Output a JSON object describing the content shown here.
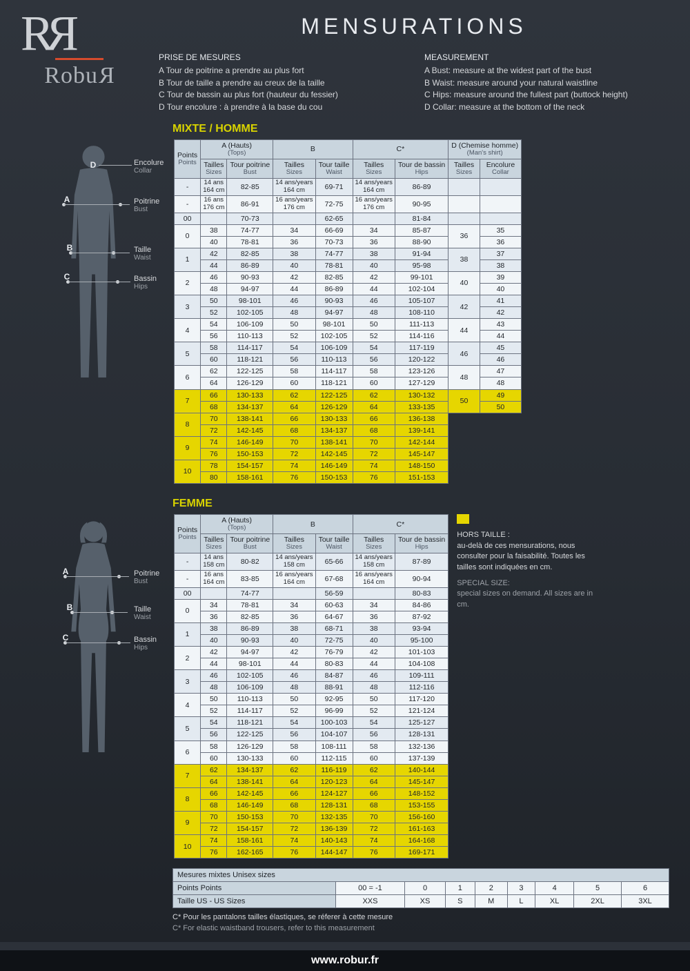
{
  "title": "MENSURATIONS",
  "brand": {
    "word": "RobuR"
  },
  "instructions": {
    "fr": {
      "hd": "PRISE DE MESURES",
      "a": "A Tour de poitrine a prendre au plus fort",
      "b": "B Tour de taille a prendre au creux de la taille",
      "c": "C Tour de bassin au plus fort (hauteur du fessier)",
      "d": "D Tour encolure : à prendre à la base du cou"
    },
    "en": {
      "hd": "MEASUREMENT",
      "a": "A Bust: measure at the widest part of the bust",
      "b": "B Waist: measure around your natural waistline",
      "c": "C Hips: measure around the fullest part (buttock height)",
      "d": "D Collar: measure at the bottom of the neck"
    }
  },
  "sect_homme": "MIXTE /  HOMME",
  "sect_femme": "FEMME",
  "labels": {
    "encolure": {
      "fr": "Encolure",
      "en": "Collar"
    },
    "poitrine": {
      "fr": "Poitrine",
      "en": "Bust"
    },
    "taille": {
      "fr": "Taille",
      "en": "Waist"
    },
    "bassin": {
      "fr": "Bassin",
      "en": "Hips"
    }
  },
  "cols": {
    "groupA": "A (Hauts)",
    "groupA_sub": "(Tops)",
    "groupB": "B",
    "groupC": "C*",
    "groupD": "D (Chemise homme)",
    "groupD_sub": "(Man's shirt)",
    "points": "Points",
    "points_sub": "Points",
    "sizes": "Tailles",
    "sizes_sub": "Sizes",
    "bust": "Tour poitrine",
    "bust_sub": "Bust",
    "waist": "Tour taille",
    "waist_sub": "Waist",
    "hips": "Tour de bassin",
    "hips_sub": "Hips",
    "collar": "Encolure",
    "collar_sub": "Collar"
  },
  "homme_rows": [
    {
      "pt": "-",
      "a_sz": "14 ans\n164 cm",
      "bust": "82-85",
      "b_sz": "14 ans/years\n164 cm",
      "waist": "69-71",
      "c_sz": "14 ans/years\n164 cm",
      "hips": "86-89"
    },
    {
      "pt": "-",
      "a_sz": "16 ans\n176 cm",
      "bust": "86-91",
      "b_sz": "16 ans/years\n176 cm",
      "waist": "72-75",
      "c_sz": "16 ans/years\n176 cm",
      "hips": "90-95"
    },
    {
      "pt": "00",
      "a_sz": "",
      "bust": "70-73",
      "b_sz": "",
      "waist": "62-65",
      "c_sz": "",
      "hips": "81-84"
    },
    {
      "pt": "0",
      "span": 2,
      "r": [
        [
          "38",
          "74-77",
          "34",
          "66-69",
          "34",
          "85-87"
        ],
        [
          "40",
          "78-81",
          "36",
          "70-73",
          "36",
          "88-90"
        ]
      ],
      "d_sz": "36",
      "d_col": [
        "35",
        "36"
      ]
    },
    {
      "pt": "1",
      "span": 2,
      "r": [
        [
          "42",
          "82-85",
          "38",
          "74-77",
          "38",
          "91-94"
        ],
        [
          "44",
          "86-89",
          "40",
          "78-81",
          "40",
          "95-98"
        ]
      ],
      "d_sz": "38",
      "d_col": [
        "37",
        "38"
      ]
    },
    {
      "pt": "2",
      "span": 2,
      "r": [
        [
          "46",
          "90-93",
          "42",
          "82-85",
          "42",
          "99-101"
        ],
        [
          "48",
          "94-97",
          "44",
          "86-89",
          "44",
          "102-104"
        ]
      ],
      "d_sz": "40",
      "d_col": [
        "39",
        "40"
      ]
    },
    {
      "pt": "3",
      "span": 2,
      "r": [
        [
          "50",
          "98-101",
          "46",
          "90-93",
          "46",
          "105-107"
        ],
        [
          "52",
          "102-105",
          "48",
          "94-97",
          "48",
          "108-110"
        ]
      ],
      "d_sz": "42",
      "d_col": [
        "41",
        "42"
      ]
    },
    {
      "pt": "4",
      "span": 2,
      "r": [
        [
          "54",
          "106-109",
          "50",
          "98-101",
          "50",
          "111-113"
        ],
        [
          "56",
          "110-113",
          "52",
          "102-105",
          "52",
          "114-116"
        ]
      ],
      "d_sz": "44",
      "d_col": [
        "43",
        "44"
      ]
    },
    {
      "pt": "5",
      "span": 2,
      "r": [
        [
          "58",
          "114-117",
          "54",
          "106-109",
          "54",
          "117-119"
        ],
        [
          "60",
          "118-121",
          "56",
          "110-113",
          "56",
          "120-122"
        ]
      ],
      "d_sz": "46",
      "d_col": [
        "45",
        "46"
      ]
    },
    {
      "pt": "6",
      "span": 2,
      "r": [
        [
          "62",
          "122-125",
          "58",
          "114-117",
          "58",
          "123-126"
        ],
        [
          "64",
          "126-129",
          "60",
          "118-121",
          "60",
          "127-129"
        ]
      ],
      "d_sz": "48",
      "d_col": [
        "47",
        "48"
      ]
    },
    {
      "pt": "7",
      "span": 2,
      "hl": true,
      "r": [
        [
          "66",
          "130-133",
          "62",
          "122-125",
          "62",
          "130-132"
        ],
        [
          "68",
          "134-137",
          "64",
          "126-129",
          "64",
          "133-135"
        ]
      ],
      "d_sz": "50",
      "d_col": [
        "49",
        "50"
      ]
    },
    {
      "pt": "8",
      "span": 2,
      "hl": true,
      "r": [
        [
          "70",
          "138-141",
          "66",
          "130-133",
          "66",
          "136-138"
        ],
        [
          "72",
          "142-145",
          "68",
          "134-137",
          "68",
          "139-141"
        ]
      ]
    },
    {
      "pt": "9",
      "span": 2,
      "hl": true,
      "r": [
        [
          "74",
          "146-149",
          "70",
          "138-141",
          "70",
          "142-144"
        ],
        [
          "76",
          "150-153",
          "72",
          "142-145",
          "72",
          "145-147"
        ]
      ]
    },
    {
      "pt": "10",
      "span": 2,
      "hl": true,
      "r": [
        [
          "78",
          "154-157",
          "74",
          "146-149",
          "74",
          "148-150"
        ],
        [
          "80",
          "158-161",
          "76",
          "150-153",
          "76",
          "151-153"
        ]
      ]
    }
  ],
  "femme_rows": [
    {
      "pt": "-",
      "a_sz": "14 ans\n158 cm",
      "bust": "80-82",
      "b_sz": "14 ans/years\n158 cm",
      "waist": "65-66",
      "c_sz": "14 ans/years\n158 cm",
      "hips": "87-89"
    },
    {
      "pt": "-",
      "a_sz": "16 ans\n164 cm",
      "bust": "83-85",
      "b_sz": "16 ans/years\n164 cm",
      "waist": "67-68",
      "c_sz": "16 ans/years\n164 cm",
      "hips": "90-94"
    },
    {
      "pt": "00",
      "a_sz": "",
      "bust": "74-77",
      "b_sz": "",
      "waist": "56-59",
      "c_sz": "",
      "hips": "80-83"
    },
    {
      "pt": "0",
      "span": 2,
      "r": [
        [
          "34",
          "78-81",
          "34",
          "60-63",
          "34",
          "84-86"
        ],
        [
          "36",
          "82-85",
          "36",
          "64-67",
          "36",
          "87-92"
        ]
      ]
    },
    {
      "pt": "1",
      "span": 2,
      "r": [
        [
          "38",
          "86-89",
          "38",
          "68-71",
          "38",
          "93-94"
        ],
        [
          "40",
          "90-93",
          "40",
          "72-75",
          "40",
          "95-100"
        ]
      ]
    },
    {
      "pt": "2",
      "span": 2,
      "r": [
        [
          "42",
          "94-97",
          "42",
          "76-79",
          "42",
          "101-103"
        ],
        [
          "44",
          "98-101",
          "44",
          "80-83",
          "44",
          "104-108"
        ]
      ]
    },
    {
      "pt": "3",
      "span": 2,
      "r": [
        [
          "46",
          "102-105",
          "46",
          "84-87",
          "46",
          "109-111"
        ],
        [
          "48",
          "106-109",
          "48",
          "88-91",
          "48",
          "112-116"
        ]
      ]
    },
    {
      "pt": "4",
      "span": 2,
      "r": [
        [
          "50",
          "110-113",
          "50",
          "92-95",
          "50",
          "117-120"
        ],
        [
          "52",
          "114-117",
          "52",
          "96-99",
          "52",
          "121-124"
        ]
      ]
    },
    {
      "pt": "5",
      "span": 2,
      "r": [
        [
          "54",
          "118-121",
          "54",
          "100-103",
          "54",
          "125-127"
        ],
        [
          "56",
          "122-125",
          "56",
          "104-107",
          "56",
          "128-131"
        ]
      ]
    },
    {
      "pt": "6",
      "span": 2,
      "r": [
        [
          "58",
          "126-129",
          "58",
          "108-111",
          "58",
          "132-136"
        ],
        [
          "60",
          "130-133",
          "60",
          "112-115",
          "60",
          "137-139"
        ]
      ]
    },
    {
      "pt": "7",
      "span": 2,
      "hl": true,
      "r": [
        [
          "62",
          "134-137",
          "62",
          "116-119",
          "62",
          "140-144"
        ],
        [
          "64",
          "138-141",
          "64",
          "120-123",
          "64",
          "145-147"
        ]
      ]
    },
    {
      "pt": "8",
      "span": 2,
      "hl": true,
      "r": [
        [
          "66",
          "142-145",
          "66",
          "124-127",
          "66",
          "148-152"
        ],
        [
          "68",
          "146-149",
          "68",
          "128-131",
          "68",
          "153-155"
        ]
      ]
    },
    {
      "pt": "9",
      "span": 2,
      "hl": true,
      "r": [
        [
          "70",
          "150-153",
          "70",
          "132-135",
          "70",
          "156-160"
        ],
        [
          "72",
          "154-157",
          "72",
          "136-139",
          "72",
          "161-163"
        ]
      ]
    },
    {
      "pt": "10",
      "span": 2,
      "hl": true,
      "r": [
        [
          "74",
          "158-161",
          "74",
          "140-143",
          "74",
          "164-168"
        ],
        [
          "76",
          "162-165",
          "76",
          "144-147",
          "76",
          "169-171"
        ]
      ]
    }
  ],
  "side_note": {
    "hd_fr": "HORS TAILLE :",
    "fr": "au-delà de ces mensurations, nous consulter pour la faisabilité. Toutes les tailles sont indiquées en cm.",
    "hd_en": "SPECIAL SIZE:",
    "en": "special sizes on demand. All sizes are in cm."
  },
  "unisex": {
    "title": "Mesures mixtes Unisex sizes",
    "row1_hd": "Points Points",
    "row2_hd": "Taille US - US Sizes",
    "points": [
      "00 = -1",
      "0",
      "1",
      "2",
      "3",
      "4",
      "5",
      "6"
    ],
    "sizes": [
      "XXS",
      "XS",
      "S",
      "M",
      "L",
      "XL",
      "2XL",
      "3XL"
    ]
  },
  "footnotes": {
    "fr": "C* Pour les pantalons tailles élastiques, se réferer à cette mesure",
    "en": "C* For elastic waistband trousers, refer to this measurement"
  },
  "footer": "www.robur.fr"
}
